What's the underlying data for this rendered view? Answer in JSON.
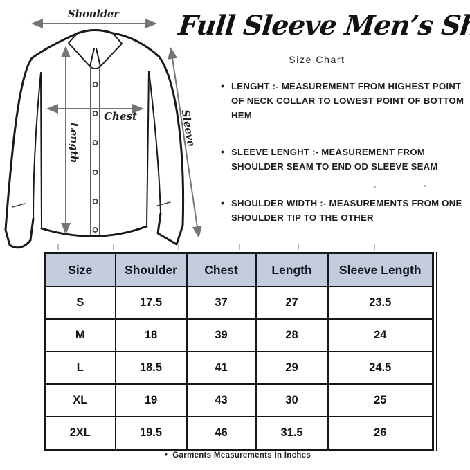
{
  "header": {
    "title": "Full Sleeve Men’s Shirt",
    "subtitle": "Size Chart"
  },
  "diagram": {
    "shoulder_label": "Shoulder",
    "chest_label": "Chest",
    "length_label": "Length",
    "sleeve_label": "Sleeve"
  },
  "bullets": [
    "LENGHT :- MEASUREMENT FROM HIGHEST POINT OF NECK COLLAR TO LOWEST POINT OF BOTTOM HEM",
    "SLEEVE LENGHT :- MEASUREMENT FROM SHOULDER SEAM TO END OD SLEEVE SEAM",
    "SHOULDER WIDTH :- MEASUREMENTS FROM ONE SHOULDER TIP TO THE OTHER"
  ],
  "table": {
    "headers": [
      "Size",
      "Shoulder",
      "Chest",
      "Length",
      "Sleeve Length"
    ],
    "rows": [
      [
        "S",
        "17.5",
        "37",
        "27",
        "23.5"
      ],
      [
        "M",
        "18",
        "39",
        "28",
        "24"
      ],
      [
        "L",
        "18.5",
        "41",
        "29",
        "24.5"
      ],
      [
        "XL",
        "19",
        "43",
        "30",
        "25"
      ],
      [
        "2XL",
        "19.5",
        "46",
        "31.5",
        "26"
      ]
    ],
    "header_bg": "#c3ccdd",
    "border_color": "#161616"
  },
  "footnote": {
    "bullet": "•",
    "text": "Garments Measurements In Inches"
  },
  "chart_data": {
    "type": "table",
    "title": "Full Sleeve Men's Shirt Size Chart",
    "units": "inches",
    "columns": [
      "Size",
      "Shoulder",
      "Chest",
      "Length",
      "Sleeve Length"
    ],
    "rows": [
      {
        "size": "S",
        "shoulder": 17.5,
        "chest": 37,
        "length": 27,
        "sleeve_length": 23.5
      },
      {
        "size": "M",
        "shoulder": 18,
        "chest": 39,
        "length": 28,
        "sleeve_length": 24
      },
      {
        "size": "L",
        "shoulder": 18.5,
        "chest": 41,
        "length": 29,
        "sleeve_length": 24.5
      },
      {
        "size": "XL",
        "shoulder": 19,
        "chest": 43,
        "length": 30,
        "sleeve_length": 25
      },
      {
        "size": "2XL",
        "shoulder": 19.5,
        "chest": 46,
        "length": 31.5,
        "sleeve_length": 26
      }
    ]
  }
}
